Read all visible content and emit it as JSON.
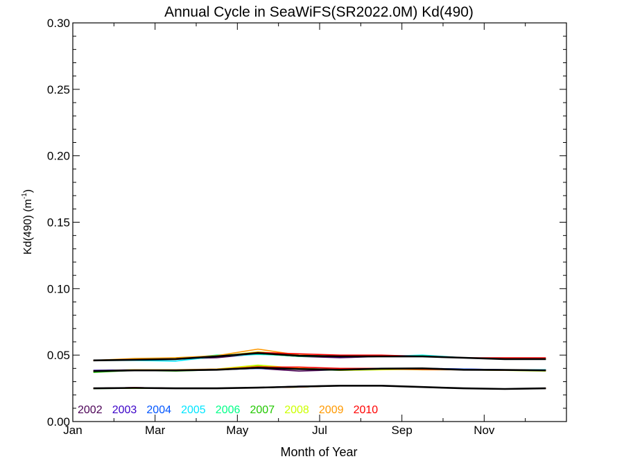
{
  "chart_data": {
    "type": "line",
    "title": "Annual Cycle in SeaWiFS(SR2022.0M) Kd(490)",
    "xlabel": "Month of Year",
    "ylabel_main": "Kd(490) (m",
    "ylabel_sup": "-1",
    "ylabel_close": ")",
    "xlim": [
      0,
      12
    ],
    "ylim": [
      0,
      0.3
    ],
    "x_ticks": [
      {
        "value": 0,
        "label": "Jan"
      },
      {
        "value": 2,
        "label": "Mar"
      },
      {
        "value": 4,
        "label": "May"
      },
      {
        "value": 6,
        "label": "Jul"
      },
      {
        "value": 8,
        "label": "Sep"
      },
      {
        "value": 10,
        "label": "Nov"
      }
    ],
    "y_ticks": [
      {
        "value": 0.0,
        "label": "0.00"
      },
      {
        "value": 0.05,
        "label": "0.05"
      },
      {
        "value": 0.1,
        "label": "0.10"
      },
      {
        "value": 0.15,
        "label": "0.15"
      },
      {
        "value": 0.2,
        "label": "0.20"
      },
      {
        "value": 0.25,
        "label": "0.25"
      },
      {
        "value": 0.3,
        "label": "0.30"
      }
    ],
    "legend_position": "bottom-left",
    "months": [
      0.5,
      1.5,
      2.5,
      3.5,
      4.5,
      5.5,
      6.5,
      7.5,
      8.5,
      9.5,
      10.5,
      11.5
    ],
    "series": [
      {
        "name": "2002",
        "color": "#4b0055",
        "upper": [
          0.046,
          0.0465,
          0.047,
          0.048,
          0.051,
          0.049,
          0.048,
          0.049,
          0.049,
          0.048,
          0.047,
          0.047
        ],
        "middle": [
          0.038,
          0.0385,
          0.0385,
          0.039,
          0.04,
          0.038,
          0.039,
          0.04,
          0.04,
          0.039,
          0.039,
          0.039
        ],
        "lower": [
          0.025,
          0.0255,
          0.025,
          0.025,
          0.0255,
          0.0265,
          0.027,
          0.027,
          0.026,
          0.025,
          0.0245,
          0.025
        ]
      },
      {
        "name": "2003",
        "color": "#3a00c8",
        "upper": [
          0.046,
          0.0465,
          0.047,
          0.049,
          0.0515,
          0.0495,
          0.0485,
          0.049,
          0.0495,
          0.048,
          0.047,
          0.047
        ],
        "middle": [
          0.0385,
          0.039,
          0.0385,
          0.0395,
          0.0405,
          0.0395,
          0.039,
          0.04,
          0.04,
          0.0395,
          0.039,
          0.0385
        ],
        "lower": [
          0.025,
          0.0255,
          0.025,
          0.025,
          0.0255,
          0.0265,
          0.027,
          0.0268,
          0.026,
          0.025,
          0.0245,
          0.025
        ]
      },
      {
        "name": "2004",
        "color": "#0055ff",
        "upper": [
          0.046,
          0.0465,
          0.047,
          0.049,
          0.051,
          0.0495,
          0.049,
          0.0495,
          0.0495,
          0.048,
          0.047,
          0.047
        ],
        "middle": [
          0.038,
          0.039,
          0.0385,
          0.039,
          0.04,
          0.0395,
          0.039,
          0.0395,
          0.04,
          0.0395,
          0.039,
          0.039
        ],
        "lower": [
          0.025,
          0.0255,
          0.025,
          0.025,
          0.0255,
          0.0265,
          0.027,
          0.027,
          0.026,
          0.025,
          0.0245,
          0.025
        ]
      },
      {
        "name": "2005",
        "color": "#00e5ff",
        "upper": [
          0.046,
          0.046,
          0.0455,
          0.049,
          0.0505,
          0.0495,
          0.049,
          0.049,
          0.05,
          0.048,
          0.0475,
          0.047
        ],
        "middle": [
          0.038,
          0.0385,
          0.0385,
          0.039,
          0.0405,
          0.0395,
          0.039,
          0.04,
          0.04,
          0.039,
          0.039,
          0.039
        ],
        "lower": [
          0.025,
          0.025,
          0.025,
          0.025,
          0.0255,
          0.026,
          0.027,
          0.027,
          0.026,
          0.025,
          0.0245,
          0.025
        ]
      },
      {
        "name": "2006",
        "color": "#00ff88",
        "upper": [
          0.046,
          0.0465,
          0.047,
          0.05,
          0.051,
          0.049,
          0.049,
          0.049,
          0.0495,
          0.048,
          0.047,
          0.047
        ],
        "middle": [
          0.0375,
          0.0385,
          0.0385,
          0.039,
          0.041,
          0.0395,
          0.0385,
          0.0395,
          0.04,
          0.039,
          0.0385,
          0.0385
        ],
        "lower": [
          0.025,
          0.025,
          0.025,
          0.025,
          0.0255,
          0.026,
          0.027,
          0.027,
          0.026,
          0.025,
          0.0245,
          0.025
        ]
      },
      {
        "name": "2007",
        "color": "#22c800",
        "upper": [
          0.046,
          0.047,
          0.047,
          0.049,
          0.052,
          0.0495,
          0.049,
          0.049,
          0.049,
          0.048,
          0.047,
          0.047
        ],
        "middle": [
          0.037,
          0.0385,
          0.038,
          0.039,
          0.042,
          0.04,
          0.039,
          0.0395,
          0.04,
          0.039,
          0.039,
          0.0385
        ],
        "lower": [
          0.0248,
          0.025,
          0.025,
          0.025,
          0.0255,
          0.026,
          0.027,
          0.027,
          0.026,
          0.025,
          0.0245,
          0.025
        ]
      },
      {
        "name": "2008",
        "color": "#ccff00",
        "upper": [
          0.046,
          0.047,
          0.048,
          0.049,
          0.0525,
          0.05,
          0.049,
          0.049,
          0.049,
          0.048,
          0.047,
          0.047
        ],
        "middle": [
          0.038,
          0.039,
          0.0385,
          0.0395,
          0.0425,
          0.04,
          0.0385,
          0.039,
          0.0395,
          0.039,
          0.0385,
          0.038
        ],
        "lower": [
          0.025,
          0.025,
          0.025,
          0.025,
          0.0255,
          0.026,
          0.027,
          0.027,
          0.026,
          0.025,
          0.0245,
          0.025
        ]
      },
      {
        "name": "2009",
        "color": "#ff9900",
        "upper": [
          0.046,
          0.0475,
          0.048,
          0.0495,
          0.0545,
          0.05,
          0.049,
          0.049,
          0.049,
          0.048,
          0.0475,
          0.047
        ],
        "middle": [
          0.038,
          0.039,
          0.039,
          0.0395,
          0.0415,
          0.04,
          0.039,
          0.0395,
          0.039,
          0.039,
          0.0385,
          0.0385
        ],
        "lower": [
          0.025,
          0.0255,
          0.025,
          0.025,
          0.0255,
          0.026,
          0.027,
          0.027,
          0.026,
          0.025,
          0.0245,
          0.025
        ]
      },
      {
        "name": "2010",
        "color": "#ff0000",
        "upper": [
          0.046,
          0.0465,
          0.047,
          0.049,
          0.052,
          0.051,
          0.05,
          0.05,
          0.049,
          0.048,
          0.048,
          0.048
        ],
        "middle": [
          0.038,
          0.0385,
          0.0385,
          0.039,
          0.041,
          0.041,
          0.04,
          0.04,
          0.0395,
          0.039,
          0.039,
          0.0385
        ],
        "lower": [
          0.025,
          0.0255,
          0.025,
          0.025,
          0.0255,
          0.026,
          0.027,
          0.027,
          0.026,
          0.025,
          0.0245,
          0.025
        ]
      }
    ],
    "climatology": {
      "color": "#000000",
      "upper": [
        0.046,
        0.0465,
        0.047,
        0.049,
        0.0515,
        0.0495,
        0.049,
        0.049,
        0.049,
        0.048,
        0.047,
        0.047
      ],
      "middle": [
        0.038,
        0.0385,
        0.0385,
        0.039,
        0.0405,
        0.0395,
        0.039,
        0.0398,
        0.04,
        0.039,
        0.0388,
        0.0385
      ],
      "lower": [
        0.025,
        0.0253,
        0.025,
        0.025,
        0.0255,
        0.0263,
        0.027,
        0.027,
        0.026,
        0.025,
        0.0245,
        0.025
      ]
    }
  }
}
